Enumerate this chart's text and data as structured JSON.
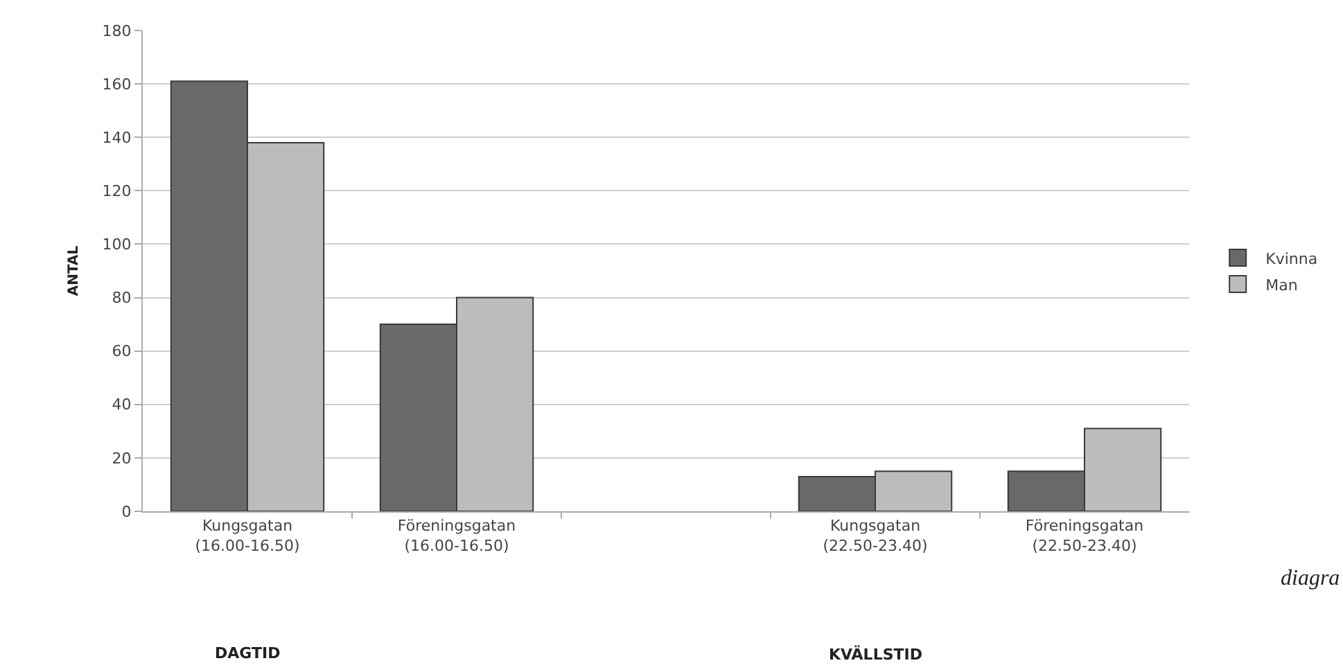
{
  "chart_data": {
    "type": "bar",
    "ylabel": "ANTAL",
    "categories": [
      "Kungsgatan\n(16.00-16.50)",
      "Föreningsgatan\n(16.00-16.50)",
      null,
      "Kungsgatan\n(22.50-23.40)",
      "Föreningsgatan\n(22.50-23.40)"
    ],
    "series": [
      {
        "name": "Kvinna",
        "color": "#696969",
        "values": [
          161,
          70,
          null,
          13,
          15
        ]
      },
      {
        "name": "Man",
        "color": "#bcbcbc",
        "values": [
          138,
          80,
          null,
          15,
          31
        ]
      }
    ],
    "ylim": [
      0,
      180
    ],
    "yticks": [
      0,
      20,
      40,
      60,
      80,
      100,
      120,
      140,
      160,
      180
    ],
    "grid": "y",
    "legend": "right",
    "annotations": [
      "DAGTID",
      "KVÄLLSTID",
      "diagra"
    ]
  }
}
